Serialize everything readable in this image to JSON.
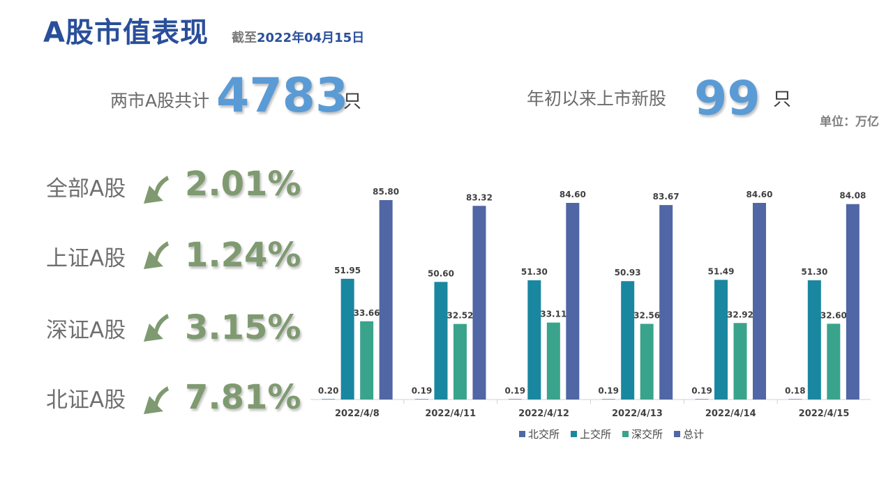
{
  "header": {
    "title": "A股市值表现",
    "asof_prefix": "截至",
    "asof_date": "2022年04月15日"
  },
  "stats": {
    "total_label": "两市A股共计",
    "total_value": "4783",
    "total_unit": "只",
    "new_label": "年初以来上市新股",
    "new_value": "99",
    "new_unit": "只"
  },
  "unit_label": "单位：万亿",
  "indices": [
    {
      "label": "全部A股",
      "change": "2.01%",
      "direction": "down"
    },
    {
      "label": "上证A股",
      "change": "1.24%",
      "direction": "down"
    },
    {
      "label": "深证A股",
      "change": "3.15%",
      "direction": "down"
    },
    {
      "label": "北证A股",
      "change": "7.81%",
      "direction": "down"
    }
  ],
  "colors": {
    "title": "#2a4f9a",
    "big_number": "#5b9bd5",
    "percent": "#7f9a70",
    "arrow": "#7f9a70"
  },
  "chart_data": {
    "type": "bar",
    "categories": [
      "2022/4/8",
      "2022/4/11",
      "2022/4/12",
      "2022/4/13",
      "2022/4/14",
      "2022/4/15"
    ],
    "series": [
      {
        "name": "北交所",
        "color": "#4a6aa8",
        "values": [
          0.2,
          0.19,
          0.19,
          0.19,
          0.19,
          0.18
        ]
      },
      {
        "name": "上交所",
        "color": "#1a87a0",
        "values": [
          51.95,
          50.6,
          51.3,
          50.93,
          51.49,
          51.3
        ]
      },
      {
        "name": "深交所",
        "color": "#3aa38c",
        "values": [
          33.66,
          32.52,
          33.11,
          32.56,
          32.92,
          32.6
        ]
      },
      {
        "name": "总计",
        "color": "#5066a5",
        "values": [
          85.8,
          83.32,
          84.6,
          83.67,
          84.6,
          84.08
        ]
      }
    ],
    "ylim": [
      0,
      100
    ],
    "data_labels": true,
    "legend": "bottom",
    "grid": false
  }
}
